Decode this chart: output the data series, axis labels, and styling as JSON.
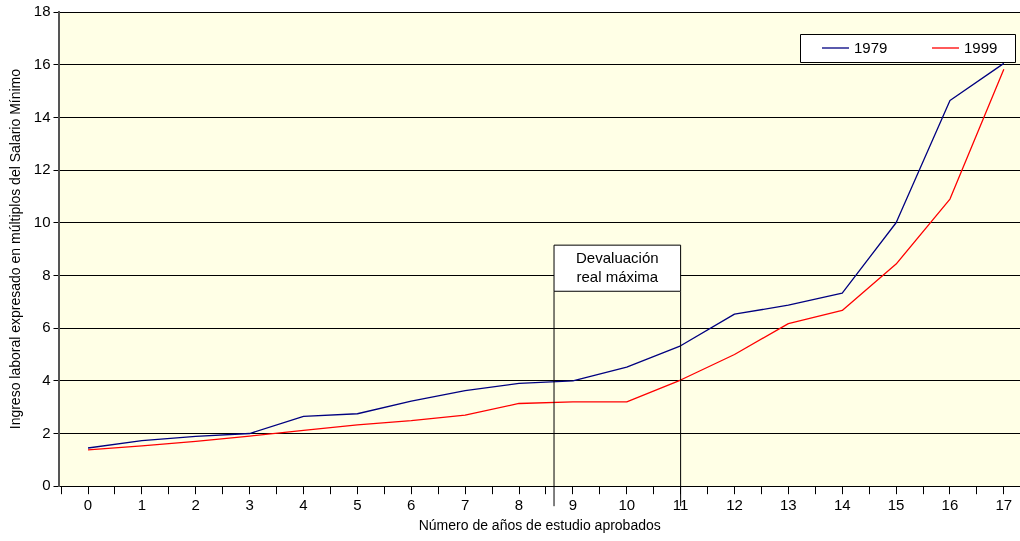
{
  "chart_data": {
    "type": "line",
    "xlabel": "Número de años de estudio aprobados",
    "ylabel": "Ingreso laboral expresado en múltiplos del Salario Mínimo",
    "x": [
      0,
      1,
      2,
      3,
      4,
      5,
      6,
      7,
      8,
      9,
      10,
      11,
      12,
      13,
      14,
      15,
      16,
      17
    ],
    "series": [
      {
        "name": "1979",
        "color": "#000080",
        "values": [
          1.45,
          1.73,
          1.89,
          2.0,
          2.65,
          2.75,
          3.23,
          3.63,
          3.9,
          4.0,
          4.52,
          5.33,
          6.53,
          6.87,
          7.33,
          10.0,
          14.64,
          16.05
        ]
      },
      {
        "name": "1999",
        "color": "#ff0000",
        "values": [
          1.38,
          1.53,
          1.7,
          1.9,
          2.12,
          2.33,
          2.49,
          2.7,
          3.14,
          3.2,
          3.2,
          4.03,
          5.0,
          6.17,
          6.67,
          8.43,
          10.9,
          15.83
        ]
      }
    ],
    "xlim": [
      -0.53,
      17.3
    ],
    "xticks": [
      {
        "value": -0.5,
        "label": null
      },
      0,
      {
        "value": 0.5,
        "label": null
      },
      1,
      {
        "value": 1.5,
        "label": null
      },
      2,
      {
        "value": 2.5,
        "label": null
      },
      3,
      {
        "value": 3.5,
        "label": null
      },
      4,
      {
        "value": 4.5,
        "label": null
      },
      5,
      {
        "value": 5.5,
        "label": null
      },
      6,
      {
        "value": 6.5,
        "label": null
      },
      7,
      {
        "value": 7.5,
        "label": null
      },
      8,
      {
        "value": 8.5,
        "label": null
      },
      9,
      {
        "value": 9.5,
        "label": null
      },
      10,
      {
        "value": 10.5,
        "label": null
      },
      11,
      {
        "value": 11.5,
        "label": null
      },
      12,
      {
        "value": 12.5,
        "label": null
      },
      13,
      {
        "value": 13.5,
        "label": null
      },
      14,
      {
        "value": 14.5,
        "label": null
      },
      15,
      {
        "value": 15.5,
        "label": null
      },
      16,
      {
        "value": 16.5,
        "label": null
      },
      17
    ],
    "ylim": [
      0,
      18
    ],
    "yticks": [
      0,
      2,
      4,
      6,
      8,
      10,
      12,
      14,
      16,
      18
    ],
    "grid": "y",
    "legend": "top right",
    "marker": "none",
    "line_style": "solid",
    "ref_lines": [
      {
        "axis": "x",
        "value": 8.65
      },
      {
        "axis": "x",
        "value": 11
      }
    ],
    "annotations": [
      "Devaluación real máxima"
    ]
  }
}
